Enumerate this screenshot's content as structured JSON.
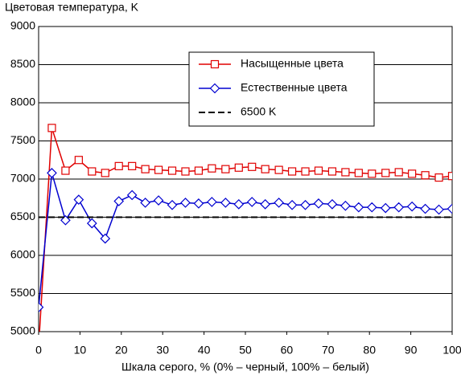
{
  "chart_data": {
    "type": "line",
    "ylabel": "Цветовая температура, K",
    "xlabel": "Шкала серого, % (0% – черный, 100% – белый)",
    "x": [
      0,
      3.2,
      6.5,
      9.7,
      12.9,
      16.1,
      19.4,
      22.6,
      25.8,
      29,
      32.3,
      35.5,
      38.7,
      41.9,
      45.2,
      48.4,
      51.6,
      54.8,
      58.1,
      61.3,
      64.5,
      67.7,
      71,
      74.2,
      77.4,
      80.6,
      83.9,
      87.1,
      90.3,
      93.5,
      96.8,
      100
    ],
    "series": [
      {
        "name": "Насыщенные цвета",
        "color": "#e00000",
        "marker": "square",
        "dashed": false,
        "values": [
          4800,
          7670,
          7110,
          7250,
          7100,
          7080,
          7170,
          7170,
          7130,
          7120,
          7110,
          7100,
          7110,
          7140,
          7130,
          7150,
          7160,
          7130,
          7120,
          7100,
          7100,
          7110,
          7100,
          7090,
          7080,
          7070,
          7080,
          7090,
          7070,
          7050,
          7020,
          7040
        ]
      },
      {
        "name": "Естественные цвета",
        "color": "#0000d0",
        "marker": "diamond",
        "dashed": false,
        "values": [
          5320,
          7080,
          6460,
          6730,
          6420,
          6220,
          6710,
          6790,
          6690,
          6720,
          6660,
          6690,
          6680,
          6700,
          6690,
          6670,
          6700,
          6670,
          6690,
          6660,
          6660,
          6680,
          6670,
          6650,
          6630,
          6630,
          6620,
          6630,
          6640,
          6610,
          6600,
          6610
        ]
      },
      {
        "name": "6500 K",
        "color": "#000000",
        "marker": null,
        "dashed": true,
        "values": [
          6500,
          6500,
          6500,
          6500,
          6500,
          6500,
          6500,
          6500,
          6500,
          6500,
          6500,
          6500,
          6500,
          6500,
          6500,
          6500,
          6500,
          6500,
          6500,
          6500,
          6500,
          6500,
          6500,
          6500,
          6500,
          6500,
          6500,
          6500,
          6500,
          6500,
          6500,
          6500
        ]
      }
    ],
    "xlim": [
      0,
      100
    ],
    "xticks": [
      0,
      10,
      20,
      30,
      40,
      50,
      60,
      70,
      80,
      90,
      100
    ],
    "ylim": [
      5000,
      9000
    ],
    "yticks": [
      5000,
      5500,
      6000,
      6500,
      7000,
      7500,
      8000,
      8500,
      9000
    ],
    "grid": true,
    "legend": "upper right"
  }
}
